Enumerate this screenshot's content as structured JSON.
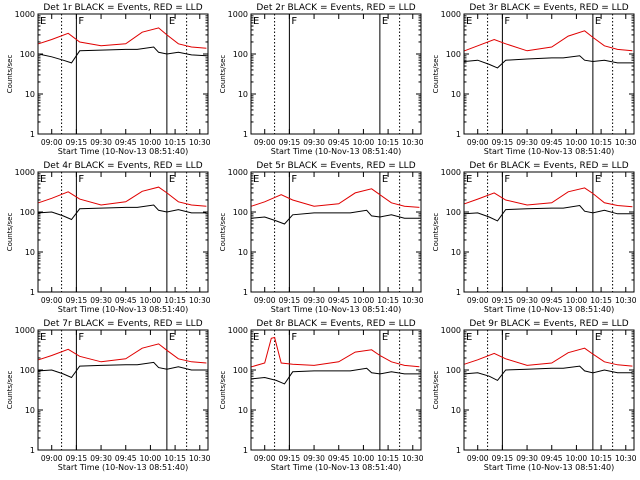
{
  "colors": {
    "events": "#000000",
    "lld": "#e00000",
    "axes": "#000000",
    "background": "#ffffff"
  },
  "common": {
    "ylabel": "Counts/sec",
    "xlabel": "Start Time (10-Nov-13 08:51:40)",
    "xticks": [
      "09:00",
      "09:15",
      "09:30",
      "09:45",
      "10:00",
      "10:15",
      "10:30"
    ],
    "yticks": [
      "1",
      "10",
      "100",
      "1000"
    ],
    "ylim": [
      1,
      1000
    ],
    "yscale": "log",
    "xlim": [
      "08:51:40",
      "10:35:00"
    ],
    "markers": [
      "E",
      "F",
      "E"
    ]
  },
  "chart_data": [
    {
      "type": "line",
      "title": "Det 1r BLACK = Events, RED = LLD",
      "series": [
        {
          "name": "Events",
          "color": "#000000",
          "x": [
            "08:52",
            "09:00",
            "09:07",
            "09:12",
            "09:17",
            "09:30",
            "09:45",
            "09:52",
            "10:02",
            "10:05",
            "10:10",
            "10:17",
            "10:25",
            "10:34"
          ],
          "values": [
            100,
            85,
            70,
            60,
            120,
            125,
            130,
            130,
            150,
            110,
            100,
            110,
            95,
            90
          ]
        },
        {
          "name": "LLD",
          "color": "#e00000",
          "x": [
            "08:52",
            "09:00",
            "09:10",
            "09:17",
            "09:30",
            "09:45",
            "09:55",
            "10:05",
            "10:10",
            "10:17",
            "10:25",
            "10:34"
          ],
          "values": [
            180,
            230,
            330,
            200,
            160,
            180,
            350,
            450,
            300,
            180,
            150,
            140
          ]
        }
      ]
    },
    {
      "type": "line",
      "title": "Det 2r BLACK = Events, RED = LLD",
      "series": []
    },
    {
      "type": "line",
      "title": "Det 3r BLACK = Events, RED = LLD",
      "series": [
        {
          "name": "Events",
          "color": "#000000",
          "x": [
            "08:52",
            "09:00",
            "09:07",
            "09:12",
            "09:17",
            "09:30",
            "09:45",
            "09:52",
            "10:02",
            "10:05",
            "10:10",
            "10:17",
            "10:25",
            "10:34"
          ],
          "values": [
            65,
            70,
            55,
            45,
            70,
            75,
            80,
            80,
            90,
            70,
            65,
            70,
            60,
            60
          ]
        },
        {
          "name": "LLD",
          "color": "#e00000",
          "x": [
            "08:52",
            "09:00",
            "09:10",
            "09:17",
            "09:30",
            "09:45",
            "09:55",
            "10:05",
            "10:10",
            "10:17",
            "10:25",
            "10:34"
          ],
          "values": [
            120,
            160,
            230,
            180,
            120,
            150,
            280,
            380,
            260,
            160,
            130,
            120
          ]
        }
      ]
    },
    {
      "type": "line",
      "title": "Det 4r BLACK = Events, RED = LLD",
      "series": [
        {
          "name": "Events",
          "color": "#000000",
          "x": [
            "08:52",
            "09:00",
            "09:07",
            "09:12",
            "09:17",
            "09:30",
            "09:45",
            "09:52",
            "10:02",
            "10:05",
            "10:10",
            "10:17",
            "10:25",
            "10:34"
          ],
          "values": [
            95,
            100,
            80,
            65,
            120,
            125,
            130,
            130,
            150,
            110,
            100,
            115,
            95,
            95
          ]
        },
        {
          "name": "LLD",
          "color": "#e00000",
          "x": [
            "08:52",
            "09:00",
            "09:10",
            "09:17",
            "09:30",
            "09:45",
            "09:55",
            "10:05",
            "10:10",
            "10:17",
            "10:25",
            "10:34"
          ],
          "values": [
            170,
            220,
            320,
            210,
            150,
            180,
            330,
            420,
            300,
            180,
            150,
            140
          ]
        }
      ]
    },
    {
      "type": "line",
      "title": "Det 5r BLACK = Events, RED = LLD",
      "series": [
        {
          "name": "Events",
          "color": "#000000",
          "x": [
            "08:52",
            "09:00",
            "09:07",
            "09:12",
            "09:17",
            "09:30",
            "09:45",
            "09:52",
            "10:02",
            "10:05",
            "10:10",
            "10:17",
            "10:25",
            "10:34"
          ],
          "values": [
            70,
            75,
            60,
            50,
            85,
            95,
            95,
            95,
            110,
            80,
            75,
            85,
            70,
            70
          ]
        },
        {
          "name": "LLD",
          "color": "#e00000",
          "x": [
            "08:52",
            "09:00",
            "09:10",
            "09:17",
            "09:30",
            "09:45",
            "09:55",
            "10:05",
            "10:10",
            "10:17",
            "10:25",
            "10:34"
          ],
          "values": [
            140,
            180,
            270,
            200,
            140,
            160,
            300,
            380,
            270,
            170,
            140,
            130
          ]
        }
      ]
    },
    {
      "type": "line",
      "title": "Det 6r BLACK = Events, RED = LLD",
      "series": [
        {
          "name": "Events",
          "color": "#000000",
          "x": [
            "08:52",
            "09:00",
            "09:07",
            "09:12",
            "09:17",
            "09:30",
            "09:45",
            "09:52",
            "10:02",
            "10:05",
            "10:10",
            "10:17",
            "10:25",
            "10:34"
          ],
          "values": [
            90,
            95,
            75,
            60,
            115,
            120,
            125,
            125,
            145,
            105,
            95,
            110,
            90,
            90
          ]
        },
        {
          "name": "LLD",
          "color": "#e00000",
          "x": [
            "08:52",
            "09:00",
            "09:10",
            "09:17",
            "09:30",
            "09:45",
            "09:55",
            "10:05",
            "10:10",
            "10:17",
            "10:25",
            "10:34"
          ],
          "values": [
            160,
            210,
            300,
            200,
            150,
            170,
            320,
            400,
            290,
            170,
            145,
            135
          ]
        }
      ]
    },
    {
      "type": "line",
      "title": "Det 7r BLACK = Events, RED = LLD",
      "series": [
        {
          "name": "Events",
          "color": "#000000",
          "x": [
            "08:52",
            "09:00",
            "09:07",
            "09:12",
            "09:17",
            "09:30",
            "09:45",
            "09:52",
            "10:02",
            "10:05",
            "10:10",
            "10:17",
            "10:25",
            "10:34"
          ],
          "values": [
            95,
            100,
            80,
            65,
            125,
            130,
            135,
            135,
            155,
            115,
            105,
            120,
            100,
            100
          ]
        },
        {
          "name": "LLD",
          "color": "#e00000",
          "x": [
            "08:52",
            "09:00",
            "09:10",
            "09:17",
            "09:30",
            "09:45",
            "09:55",
            "10:05",
            "10:10",
            "10:17",
            "10:25",
            "10:34"
          ],
          "values": [
            180,
            230,
            330,
            220,
            160,
            190,
            350,
            450,
            310,
            190,
            160,
            150
          ]
        }
      ]
    },
    {
      "type": "line",
      "title": "Det 8r BLACK = Events, RED = LLD",
      "series": [
        {
          "name": "Events",
          "color": "#000000",
          "x": [
            "08:52",
            "09:00",
            "09:07",
            "09:12",
            "09:17",
            "09:30",
            "09:45",
            "09:52",
            "10:02",
            "10:05",
            "10:10",
            "10:17",
            "10:25",
            "10:34"
          ],
          "values": [
            60,
            65,
            55,
            45,
            90,
            95,
            95,
            95,
            110,
            85,
            80,
            90,
            80,
            80
          ]
        },
        {
          "name": "LLD",
          "color": "#e00000",
          "x": [
            "08:52",
            "09:00",
            "09:04",
            "09:06",
            "09:10",
            "09:17",
            "09:30",
            "09:45",
            "09:55",
            "10:05",
            "10:10",
            "10:17",
            "10:25",
            "10:34"
          ],
          "values": [
            120,
            150,
            620,
            650,
            150,
            140,
            130,
            160,
            280,
            320,
            230,
            160,
            130,
            120
          ]
        }
      ]
    },
    {
      "type": "line",
      "title": "Det 9r BLACK = Events, RED = LLD",
      "series": [
        {
          "name": "Events",
          "color": "#000000",
          "x": [
            "08:52",
            "09:00",
            "09:07",
            "09:12",
            "09:17",
            "09:30",
            "09:45",
            "09:52",
            "10:02",
            "10:05",
            "10:10",
            "10:17",
            "10:25",
            "10:34"
          ],
          "values": [
            80,
            85,
            70,
            55,
            100,
            105,
            110,
            110,
            125,
            95,
            85,
            100,
            85,
            85
          ]
        },
        {
          "name": "LLD",
          "color": "#e00000",
          "x": [
            "08:52",
            "09:00",
            "09:10",
            "09:17",
            "09:30",
            "09:45",
            "09:55",
            "10:05",
            "10:10",
            "10:17",
            "10:25",
            "10:34"
          ],
          "values": [
            140,
            180,
            260,
            190,
            130,
            150,
            270,
            350,
            250,
            160,
            135,
            125
          ]
        }
      ]
    }
  ]
}
